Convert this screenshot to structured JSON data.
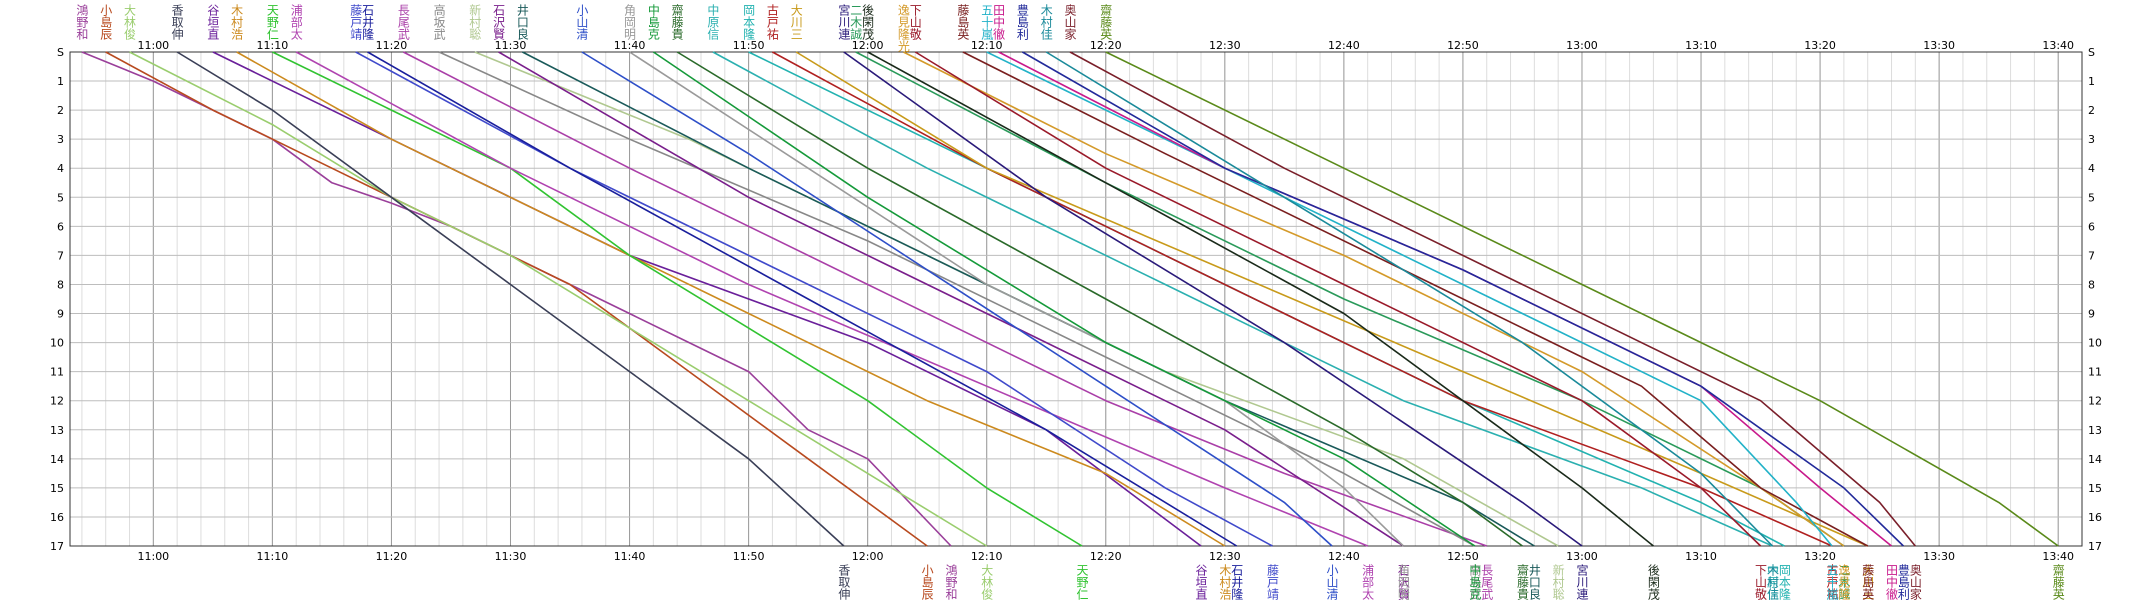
{
  "chart_data": {
    "type": "line",
    "title": "",
    "xlabel": "",
    "ylabel": "",
    "grid": true,
    "x_range": [
      "10:53",
      "13:42"
    ],
    "x_ticks": [
      "11:00",
      "11:10",
      "11:20",
      "11:30",
      "11:40",
      "11:50",
      "12:00",
      "12:10",
      "12:20",
      "12:30",
      "12:40",
      "12:50",
      "13:00",
      "13:10",
      "13:20",
      "13:30",
      "13:40"
    ],
    "y_ticks": [
      "S",
      "1",
      "2",
      "3",
      "4",
      "5",
      "6",
      "7",
      "8",
      "9",
      "10",
      "11",
      "12",
      "13",
      "14",
      "15",
      "16",
      "17"
    ],
    "series": [
      {
        "name": "鴻野和",
        "color": "#9a3f9a",
        "x": [
          "10:54",
          "11:00",
          "11:05",
          "11:10",
          "11:15",
          "11:20",
          "11:25",
          "11:35",
          "11:45",
          "11:50",
          "11:55",
          "12:00",
          "12:07"
        ],
        "y": [
          0,
          1,
          2,
          3,
          4.5,
          5.2,
          6,
          8,
          10,
          11,
          13,
          14,
          17
        ]
      },
      {
        "name": "小島辰",
        "color": "#b84a1f",
        "x": [
          "10:56",
          "11:05",
          "11:15",
          "11:25",
          "11:35",
          "11:45",
          "11:55",
          "12:05"
        ],
        "y": [
          0,
          2,
          4,
          6,
          8,
          11,
          14,
          17
        ]
      },
      {
        "name": "大林俊",
        "color": "#9acd6e",
        "x": [
          "10:58",
          "11:10",
          "11:20",
          "11:30",
          "11:40",
          "11:50",
          "12:00",
          "12:10"
        ],
        "y": [
          0,
          2.5,
          5,
          7,
          9.5,
          12,
          14.5,
          17
        ]
      },
      {
        "name": "香取伸",
        "color": "#3a3f57",
        "x": [
          "11:02",
          "11:10",
          "11:20",
          "11:30",
          "11:40",
          "11:50",
          "11:58"
        ],
        "y": [
          0,
          2,
          5,
          8,
          11,
          14,
          17
        ]
      },
      {
        "name": "谷垣直",
        "color": "#6a1f9a",
        "x": [
          "11:05",
          "11:20",
          "11:40",
          "12:00",
          "12:15",
          "12:28"
        ],
        "y": [
          0,
          3,
          7,
          10,
          13,
          17
        ]
      },
      {
        "name": "木村浩",
        "color": "#cc8a1e",
        "x": [
          "11:07",
          "11:20",
          "11:35",
          "11:50",
          "12:05",
          "12:20",
          "12:30"
        ],
        "y": [
          0,
          3,
          6,
          9,
          12,
          14.5,
          17
        ]
      },
      {
        "name": "天野仁",
        "color": "#31c331",
        "x": [
          "11:10",
          "11:20",
          "11:30",
          "11:40",
          "11:50",
          "12:00",
          "12:10",
          "12:18"
        ],
        "y": [
          0,
          2,
          4,
          7,
          9.5,
          12,
          15,
          17
        ]
      },
      {
        "name": "浦部太",
        "color": "#b043b0",
        "x": [
          "11:12",
          "11:30",
          "11:50",
          "12:10",
          "12:30",
          "12:42"
        ],
        "y": [
          0,
          4,
          8,
          11.5,
          15,
          17
        ]
      },
      {
        "name": "藤戸靖",
        "color": "#404acb",
        "x": [
          "11:17",
          "11:35",
          "11:50",
          "12:10",
          "12:25",
          "12:34"
        ],
        "y": [
          0,
          4,
          7,
          11,
          15,
          17
        ]
      },
      {
        "name": "石井隆",
        "color": "#1a1f9c",
        "x": [
          "11:18",
          "11:35",
          "11:55",
          "12:15",
          "12:31"
        ],
        "y": [
          0,
          4,
          8.5,
          13,
          17
        ]
      },
      {
        "name": "長尾武",
        "color": "#aa3fa8",
        "x": [
          "11:21",
          "11:40",
          "12:00",
          "12:20",
          "12:35",
          "12:52"
        ],
        "y": [
          0,
          4,
          8,
          12,
          14.5,
          17
        ]
      },
      {
        "name": "高坂武",
        "color": "#888888",
        "x": [
          "11:24",
          "11:40",
          "12:00",
          "12:20",
          "12:40",
          "12:51"
        ],
        "y": [
          0,
          3,
          6.5,
          10.5,
          14.5,
          17
        ]
      },
      {
        "name": "新村聡",
        "color": "#b0c890",
        "x": [
          "11:27",
          "11:45",
          "12:05",
          "12:25",
          "12:45",
          "12:58"
        ],
        "y": [
          0,
          3,
          7,
          11,
          14,
          17
        ]
      },
      {
        "name": "石沢賢",
        "color": "#7a1f8c",
        "x": [
          "11:29",
          "11:50",
          "12:10",
          "12:30",
          "12:45"
        ],
        "y": [
          0,
          5,
          9,
          13,
          17
        ]
      },
      {
        "name": "井口良",
        "color": "#1a5a5a",
        "x": [
          "11:31",
          "11:50",
          "12:10",
          "12:30",
          "12:50",
          "12:56"
        ],
        "y": [
          0,
          4,
          8,
          12,
          15.5,
          17
        ]
      },
      {
        "name": "小山清",
        "color": "#2e4fc8",
        "x": [
          "11:36",
          "11:50",
          "12:05",
          "12:20",
          "12:35",
          "12:39"
        ],
        "y": [
          0,
          3.5,
          7.5,
          11.5,
          15.5,
          17
        ]
      },
      {
        "name": "角岡明",
        "color": "#9a9a9a",
        "x": [
          "11:40",
          "11:55",
          "12:10",
          "12:30",
          "12:40",
          "12:45"
        ],
        "y": [
          0,
          4,
          8,
          12,
          15,
          17
        ]
      },
      {
        "name": "中島克",
        "color": "#159a3a",
        "x": [
          "11:42",
          "12:00",
          "12:20",
          "12:40",
          "12:51"
        ],
        "y": [
          0,
          5,
          10,
          14,
          17
        ]
      },
      {
        "name": "齋藤貴",
        "color": "#2a6a2a",
        "x": [
          "11:44",
          "12:00",
          "12:20",
          "12:40",
          "12:50",
          "12:55"
        ],
        "y": [
          0,
          4,
          8.5,
          13,
          15.5,
          17
        ]
      },
      {
        "name": "中原信",
        "color": "#2bb0b0",
        "x": [
          "11:47",
          "12:05",
          "12:25",
          "12:45",
          "13:05",
          "13:16"
        ],
        "y": [
          0,
          4,
          8,
          12,
          15,
          17
        ]
      },
      {
        "name": "岡本隆",
        "color": "#22b2b0",
        "x": [
          "11:50",
          "12:10",
          "12:30",
          "12:50",
          "13:10",
          "13:17"
        ],
        "y": [
          0,
          4,
          8,
          12,
          15.5,
          17
        ]
      },
      {
        "name": "古戸祐",
        "color": "#b02020",
        "x": [
          "11:52",
          "12:10",
          "12:30",
          "12:50",
          "13:10",
          "13:21"
        ],
        "y": [
          0,
          4,
          8,
          12,
          15,
          17
        ]
      },
      {
        "name": "大川三",
        "color": "#c89a1a",
        "x": [
          "11:54",
          "12:10",
          "12:30",
          "12:50",
          "13:10",
          "13:24"
        ],
        "y": [
          0,
          4,
          7.5,
          11,
          14.5,
          17
        ]
      },
      {
        "name": "宮川連",
        "color": "#2a1a7a",
        "x": [
          "11:58",
          "12:15",
          "12:35",
          "12:55",
          "13:00"
        ],
        "y": [
          0,
          5,
          10,
          15.5,
          17
        ]
      },
      {
        "name": "二木誠",
        "color": "#2a9a5a",
        "x": [
          "11:59",
          "12:20",
          "12:40",
          "13:00",
          "13:15",
          "13:22"
        ],
        "y": [
          0,
          4.5,
          8.5,
          12,
          15,
          17
        ]
      },
      {
        "name": "後閑茂",
        "color": "#1a2a1a",
        "x": [
          "12:00",
          "12:20",
          "12:40",
          "12:55",
          "13:00",
          "13:06"
        ],
        "y": [
          0,
          4.5,
          9,
          13.5,
          15,
          17
        ]
      },
      {
        "name": "逸見隆光",
        "color": "#d49a2a",
        "x": [
          "12:03",
          "12:20",
          "12:40",
          "13:00",
          "13:15",
          "13:22"
        ],
        "y": [
          0,
          3.5,
          7,
          11,
          15,
          17
        ]
      },
      {
        "name": "下山敬",
        "color": "#9a1a2a",
        "x": [
          "12:04",
          "12:20",
          "12:40",
          "13:00",
          "13:10",
          "13:15"
        ],
        "y": [
          0,
          4,
          8,
          12,
          15,
          17
        ]
      },
      {
        "name": "藤島英",
        "color": "#7a1f1f",
        "x": [
          "12:08",
          "12:25",
          "12:45",
          "13:05",
          "13:15",
          "13:24"
        ],
        "y": [
          0,
          3.5,
          7.5,
          11.5,
          15,
          17
        ]
      },
      {
        "name": "五十嵐",
        "color": "#22b2c8",
        "x": [
          "12:10",
          "12:30",
          "12:50",
          "13:10",
          "13:18",
          "13:21"
        ],
        "y": [
          0,
          4,
          8,
          12,
          15.5,
          17
        ]
      },
      {
        "name": "田中徹",
        "color": "#c81a8c",
        "x": [
          "12:11",
          "12:30",
          "12:50",
          "13:10",
          "13:20",
          "13:26"
        ],
        "y": [
          0,
          4,
          7.5,
          11.5,
          15,
          17
        ]
      },
      {
        "name": "豊島利",
        "color": "#222a9a",
        "x": [
          "12:13",
          "12:30",
          "12:50",
          "13:10",
          "13:22",
          "13:27"
        ],
        "y": [
          0,
          4,
          7.5,
          11.5,
          15,
          17
        ]
      },
      {
        "name": "木村佳",
        "color": "#1a8a9a",
        "x": [
          "12:15",
          "12:35",
          "12:55",
          "13:10",
          "13:16"
        ],
        "y": [
          0,
          5,
          10,
          14.5,
          17
        ]
      },
      {
        "name": "奥山家",
        "color": "#7a1f2a",
        "x": [
          "12:17",
          "12:35",
          "12:55",
          "13:15",
          "13:25",
          "13:28"
        ],
        "y": [
          0,
          4,
          8,
          12,
          15.5,
          17
        ]
      },
      {
        "name": "齋藤英",
        "color": "#5a8a1a",
        "x": [
          "12:20",
          "12:40",
          "13:00",
          "13:20",
          "13:35",
          "13:40"
        ],
        "y": [
          0,
          4,
          8,
          12,
          15.5,
          17
        ]
      }
    ]
  }
}
